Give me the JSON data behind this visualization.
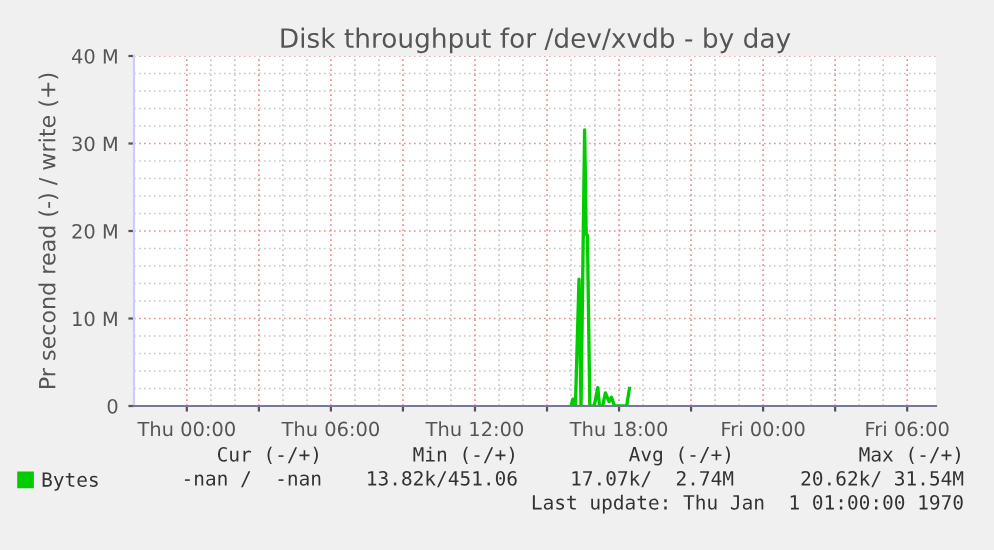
{
  "chart_data": {
    "type": "line",
    "title": "Disk throughput for /dev/xvdb - by day",
    "ylabel": "Pr second read (-) / write (+)",
    "x": [
      "1970-01-01T16:00",
      "1970-01-01T16:05",
      "1970-01-01T16:11",
      "1970-01-01T16:20",
      "1970-01-01T16:25",
      "1970-01-01T16:34",
      "1970-01-01T16:38",
      "1970-01-01T16:41",
      "1970-01-01T16:47",
      "1970-01-01T16:58",
      "1970-01-01T17:07",
      "1970-01-01T17:11",
      "1970-01-01T17:19",
      "1970-01-01T17:26",
      "1970-01-01T17:35",
      "1970-01-01T17:41",
      "1970-01-01T17:49",
      "1970-01-01T18:19",
      "1970-01-01T18:26"
    ],
    "series": [
      {
        "name": "Bytes",
        "color": "#00cc00",
        "values": [
          0,
          800000,
          0,
          14500000,
          0,
          31540000,
          19600000,
          19500000,
          0,
          0,
          2100000,
          0,
          0,
          1500000,
          500000,
          1000000,
          0,
          0,
          2000000
        ]
      }
    ],
    "xlim": [
      "1969-12-31T21:48",
      "1970-01-02T07:12"
    ],
    "xticks": [
      {
        "value": "1970-01-01T00:00",
        "label": "Thu 00:00"
      },
      {
        "value": "1970-01-01T03:00",
        "label": null
      },
      {
        "value": "1970-01-01T06:00",
        "label": "Thu 06:00"
      },
      {
        "value": "1970-01-01T09:00",
        "label": null
      },
      {
        "value": "1970-01-01T12:00",
        "label": "Thu 12:00"
      },
      {
        "value": "1970-01-01T15:00",
        "label": null
      },
      {
        "value": "1970-01-01T18:00",
        "label": "Thu 18:00"
      },
      {
        "value": "1970-01-01T21:00",
        "label": null
      },
      {
        "value": "1970-01-02T00:00",
        "label": "Fri 00:00"
      },
      {
        "value": "1970-01-02T03:00",
        "label": null
      },
      {
        "value": "1970-01-02T06:00",
        "label": "Fri 06:00"
      }
    ],
    "ylim": [
      0,
      40000000
    ],
    "yticks": [
      0,
      {
        "value": 10000000,
        "label": "10 M"
      },
      {
        "value": 20000000,
        "label": "20 M"
      },
      {
        "value": 30000000,
        "label": "30 M"
      },
      {
        "value": 40000000,
        "label": "40 M"
      }
    ],
    "grid": true,
    "legend": "bottom left",
    "marker": "none",
    "line_style": "solid",
    "annotations": [
      "Cur (-/+)",
      "Min (-/+)",
      "Avg (-/+)",
      "Max (-/+)",
      "-nan /  -nan",
      "13.82k/451.06",
      "17.07k/  2.74M",
      "20.62k/ 31.54M",
      "Last update: Thu Jan  1 01:00:00 1970"
    ]
  }
}
